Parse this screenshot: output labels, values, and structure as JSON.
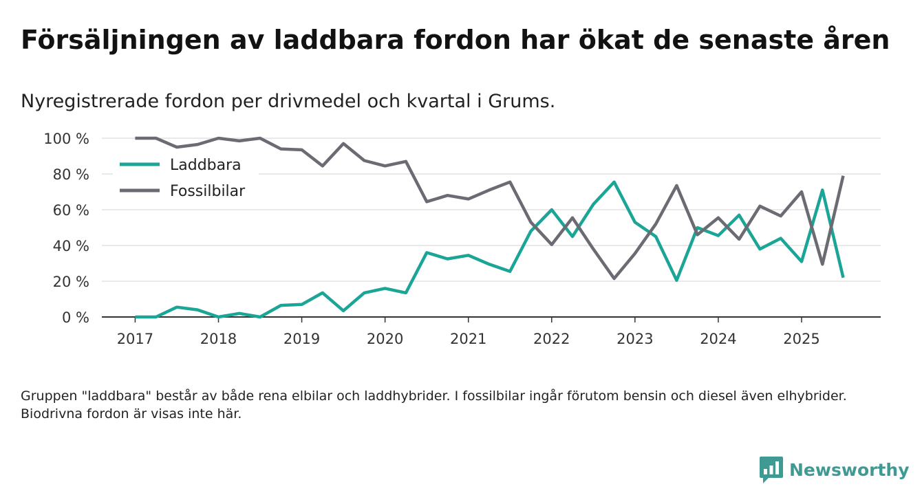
{
  "title": "Försäljningen av laddbara fordon har ökat de senaste åren",
  "subtitle": "Nyregistrerade fordon per drivmedel och kvartal i Grums.",
  "footnote": "Gruppen \"laddbara\" består av både rena elbilar och laddhybrider. I fossilbilar ingår förutom bensin och diesel även elhybrider. Biodrivna fordon är visas inte här.",
  "brand": {
    "name": "Newsworthy",
    "icon": "bar-chart-speech-icon",
    "color": "#3e9a93"
  },
  "chart_data": {
    "type": "line",
    "title": "Försäljningen av laddbara fordon har ökat de senaste åren",
    "xlabel": "",
    "ylabel": "",
    "x": [
      2017.0,
      2017.25,
      2017.5,
      2017.75,
      2018.0,
      2018.25,
      2018.5,
      2018.75,
      2019.0,
      2019.25,
      2019.5,
      2019.75,
      2020.0,
      2020.25,
      2020.5,
      2020.75,
      2021.0,
      2021.25,
      2021.5,
      2021.75,
      2022.0,
      2022.25,
      2022.5,
      2022.75,
      2023.0,
      2023.25,
      2023.5,
      2023.75,
      2024.0,
      2024.25,
      2024.5,
      2024.75,
      2025.0,
      2025.25,
      2025.5
    ],
    "xlim": [
      2016.6,
      2025.95
    ],
    "ylim": [
      0,
      100
    ],
    "x_ticks": [
      "2017",
      "2018",
      "2019",
      "2020",
      "2021",
      "2022",
      "2023",
      "2024",
      "2025"
    ],
    "y_ticks": [
      "0 %",
      "20 %",
      "40 %",
      "60 %",
      "80 %",
      "100 %"
    ],
    "grid": true,
    "legend_position": "top-left",
    "series": [
      {
        "name": "Laddbara",
        "color": "#1aa596",
        "values": [
          0,
          0,
          5.5,
          4,
          0,
          2,
          0,
          6.5,
          7,
          13.5,
          3.5,
          13.5,
          16,
          13.5,
          36,
          32.5,
          34.5,
          29.5,
          25.5,
          48,
          60,
          45,
          63,
          75.5,
          53,
          45,
          20.5,
          50,
          45.5,
          57,
          38,
          44,
          31,
          71,
          22
        ]
      },
      {
        "name": "Fossilbilar",
        "color": "#6b6b73",
        "values": [
          100,
          100,
          95,
          96.5,
          100,
          98.5,
          100,
          94,
          93.5,
          84.5,
          97,
          87.5,
          84.5,
          87,
          64.5,
          68,
          66,
          71,
          75.5,
          53,
          40.5,
          55.5,
          38,
          21.5,
          35.5,
          52,
          73.5,
          46,
          55.5,
          43.5,
          62,
          56.5,
          70,
          29.5,
          79
        ]
      }
    ]
  }
}
